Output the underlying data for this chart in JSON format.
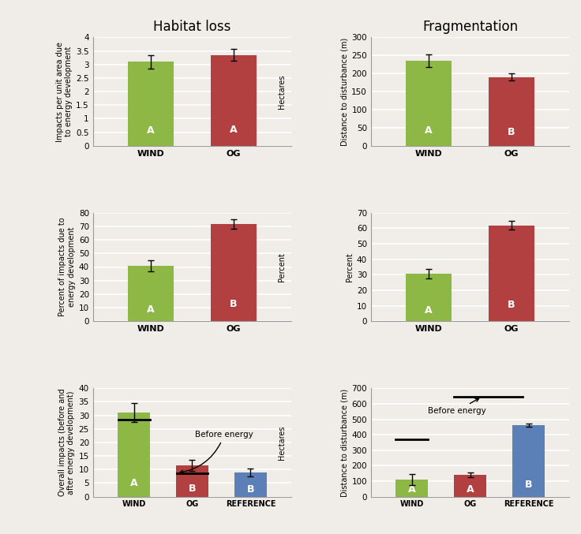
{
  "title_left": "Habitat loss",
  "title_right": "Fragmentation",
  "colors": {
    "wind": "#8db845",
    "og": "#b34040",
    "reference": "#5b80b8",
    "background": "#f0ede8"
  },
  "row1_left": {
    "ylabel": "Impacts per unit area due\nto energy development",
    "ylabel2": "Hectares",
    "ylim": [
      0,
      4
    ],
    "yticks": [
      0,
      0.5,
      1.0,
      1.5,
      2.0,
      2.5,
      3.0,
      3.5,
      4.0
    ],
    "bars": [
      3.1,
      3.35
    ],
    "errors": [
      0.25,
      0.22
    ],
    "labels": [
      "A",
      "A"
    ],
    "xticklabels": [
      "WIND",
      "OG"
    ]
  },
  "row1_right": {
    "ylabel": "Distance to disturbance (m)",
    "ylim": [
      0,
      300
    ],
    "yticks": [
      0,
      50,
      100,
      150,
      200,
      250,
      300
    ],
    "bars": [
      235,
      190
    ],
    "errors": [
      18,
      10
    ],
    "labels": [
      "A",
      "B"
    ],
    "xticklabels": [
      "WIND",
      "OG"
    ]
  },
  "row2_left": {
    "ylabel": "Percent of impacts due to\nenergy development",
    "ylabel2": "Percent",
    "ylim": [
      0,
      80
    ],
    "yticks": [
      0,
      10,
      20,
      30,
      40,
      50,
      60,
      70,
      80
    ],
    "bars": [
      41.0,
      72.0
    ],
    "errors": [
      4.0,
      3.5
    ],
    "labels": [
      "A",
      "B"
    ],
    "xticklabels": [
      "WIND",
      "OG"
    ]
  },
  "row2_right": {
    "ylabel": "Percent",
    "ylim": [
      0,
      70
    ],
    "yticks": [
      0,
      10,
      20,
      30,
      40,
      50,
      60,
      70
    ],
    "bars": [
      30.5,
      62.0
    ],
    "errors": [
      3.0,
      3.0
    ],
    "labels": [
      "A",
      "B"
    ],
    "xticklabels": [
      "WIND",
      "OG"
    ]
  },
  "row3_left": {
    "ylabel": "Overall impacts (before and\nafter energy development)",
    "ylabel2": "Hectares",
    "ylim": [
      0,
      40
    ],
    "yticks": [
      0,
      5,
      10,
      15,
      20,
      25,
      30,
      35,
      40
    ],
    "bars": [
      31.0,
      11.5,
      9.0
    ],
    "errors": [
      3.5,
      2.0,
      1.5
    ],
    "before_lines": [
      28.5,
      8.7
    ],
    "labels": [
      "A",
      "B",
      "B"
    ],
    "xticklabels": [
      "WIND",
      "OG",
      "REFERENCE"
    ],
    "annotation_text": "Before energy"
  },
  "row3_right": {
    "ylabel": "Distance to disturbance (m)",
    "ylim": [
      0,
      700
    ],
    "yticks": [
      0,
      100,
      200,
      300,
      400,
      500,
      600,
      700
    ],
    "bars": [
      112,
      140,
      462
    ],
    "errors": [
      35,
      15,
      10
    ],
    "before_lines": [
      370,
      645
    ],
    "labels": [
      "A",
      "A",
      "B"
    ],
    "xticklabels": [
      "WIND",
      "OG",
      "REFERENCE"
    ],
    "annotation_text": "Before energy"
  }
}
